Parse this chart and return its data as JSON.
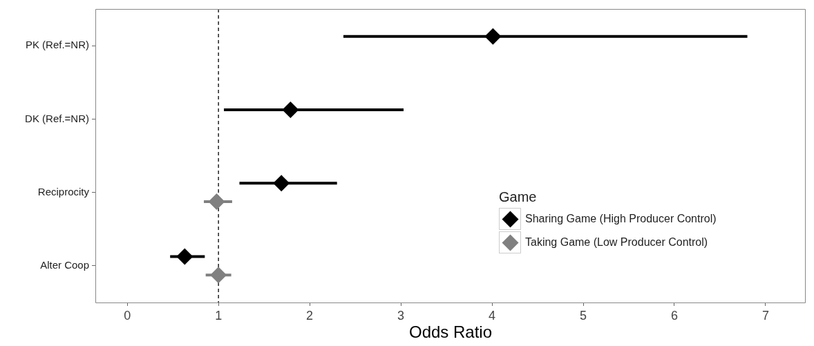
{
  "chart_data": {
    "type": "scatter",
    "orientation": "horizontal",
    "xlabel": "Odds Ratio",
    "legend_title": "Game",
    "legend": "bottom right",
    "grid": false,
    "marker": "diamond",
    "categories": [
      "PK (Ref.=NR)",
      "DK (Ref.=NR)",
      "Reciprocity",
      "Alter Coop"
    ],
    "xlim": [
      -0.35,
      7.44
    ],
    "xticks": [
      0,
      1,
      2,
      3,
      4,
      5,
      6,
      7
    ],
    "ref_lines": [
      {
        "axis": "x",
        "value": 1,
        "line_style": "dashed",
        "color": "#000000"
      }
    ],
    "series": [
      {
        "name": "Sharing Game (High Producer Control)",
        "color": "#000000",
        "values": [
          4.01,
          1.79,
          1.69,
          0.63
        ],
        "errors": [
          [
            2.37,
            6.8
          ],
          [
            1.06,
            3.03
          ],
          [
            1.23,
            2.3
          ],
          [
            0.47,
            0.85
          ]
        ]
      },
      {
        "name": "Taking Game (Low Producer Control)",
        "color": "#808080",
        "values": [
          null,
          null,
          0.98,
          1.0
        ],
        "errors": [
          null,
          null,
          [
            0.84,
            1.15
          ],
          [
            0.86,
            1.14
          ]
        ]
      }
    ]
  }
}
